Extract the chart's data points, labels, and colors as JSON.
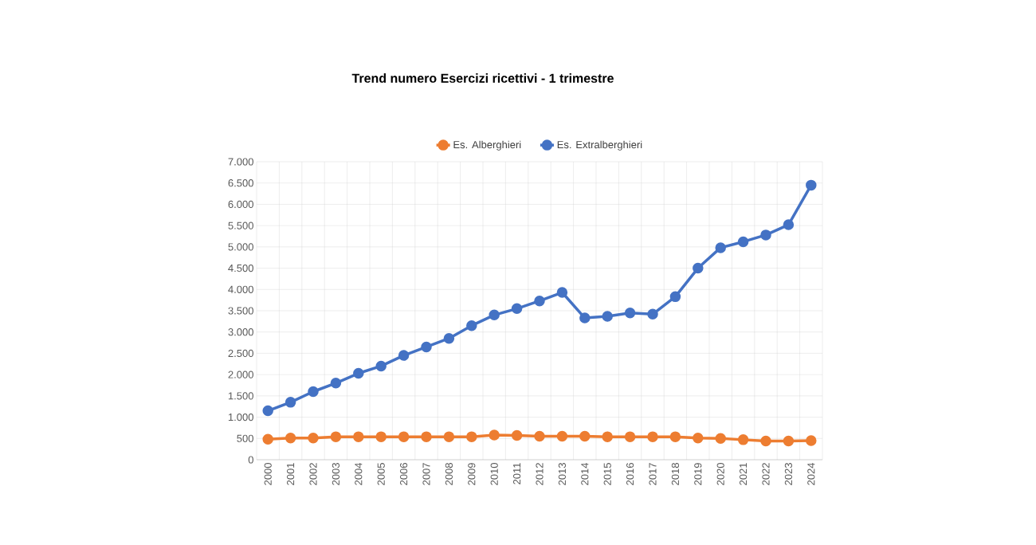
{
  "chart_data": {
    "type": "line",
    "title": "Trend numero Esercizi ricettivi - 1 trimestre",
    "categories": [
      "2000",
      "2001",
      "2002",
      "2003",
      "2004",
      "2005",
      "2006",
      "2007",
      "2008",
      "2009",
      "2010",
      "2011",
      "2012",
      "2013",
      "2014",
      "2015",
      "2016",
      "2017",
      "2018",
      "2019",
      "2020",
      "2021",
      "2022",
      "2023",
      "2024"
    ],
    "series": [
      {
        "name": "Es. Alberghieri",
        "color": "#ed7d31",
        "values": [
          480,
          510,
          510,
          540,
          540,
          540,
          540,
          540,
          540,
          540,
          580,
          570,
          550,
          550,
          550,
          540,
          540,
          540,
          540,
          510,
          500,
          470,
          440,
          440,
          450
        ]
      },
      {
        "name": "Es. Extralberghieri",
        "color": "#4472c4",
        "values": [
          1150,
          1350,
          1600,
          1800,
          2030,
          2200,
          2450,
          2650,
          2850,
          3150,
          3400,
          3550,
          3730,
          3930,
          3330,
          3370,
          3450,
          3420,
          3830,
          4500,
          4980,
          5120,
          5280,
          5520,
          6450
        ]
      }
    ],
    "ylim": [
      0,
      7000
    ],
    "yticks": [
      0,
      {
        "value": 500,
        "label": "500"
      },
      {
        "value": 1000,
        "label": "1.000"
      },
      {
        "value": 1500,
        "label": "1.500"
      },
      {
        "value": 2000,
        "label": "2.000"
      },
      {
        "value": 2500,
        "label": "2.500"
      },
      {
        "value": 3000,
        "label": "3.000"
      },
      {
        "value": 3500,
        "label": "3.500"
      },
      {
        "value": 4000,
        "label": "4.000"
      },
      {
        "value": 4500,
        "label": "4.500"
      },
      {
        "value": 5000,
        "label": "5.000"
      },
      {
        "value": 5500,
        "label": "5.500"
      },
      {
        "value": 6000,
        "label": "6.000"
      },
      {
        "value": 6500,
        "label": "6.500"
      },
      {
        "value": 7000,
        "label": "7.000"
      }
    ],
    "grid": true,
    "legend": "top",
    "marker": "circle",
    "line_style": "solid"
  }
}
